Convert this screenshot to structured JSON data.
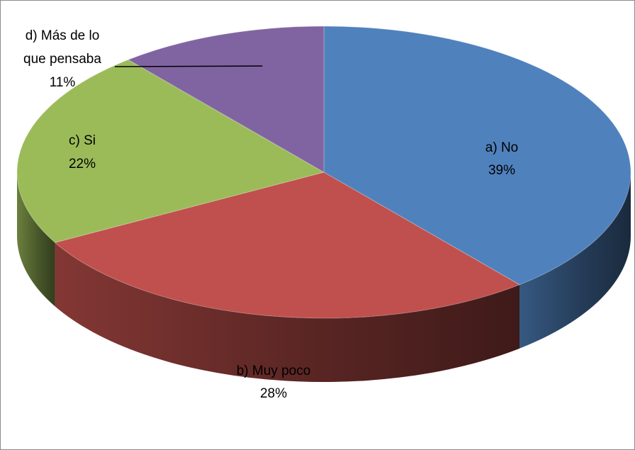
{
  "chart_data": {
    "type": "pie",
    "style": "3d",
    "slices": [
      {
        "label": "a) No",
        "value": 39,
        "value_label": "39%",
        "color": "#4f81bd"
      },
      {
        "label": "b) Muy poco",
        "value": 28,
        "value_label": "28%",
        "color": "#c0504d"
      },
      {
        "label": "c) Si",
        "value": 22,
        "value_label": "22%",
        "color": "#9bbb59"
      },
      {
        "label": "d) Más de lo que pensaba",
        "label_lines": [
          "d) Más de lo",
          "que pensaba"
        ],
        "value": 11,
        "value_label": "11%",
        "color": "#8064a2"
      }
    ]
  }
}
